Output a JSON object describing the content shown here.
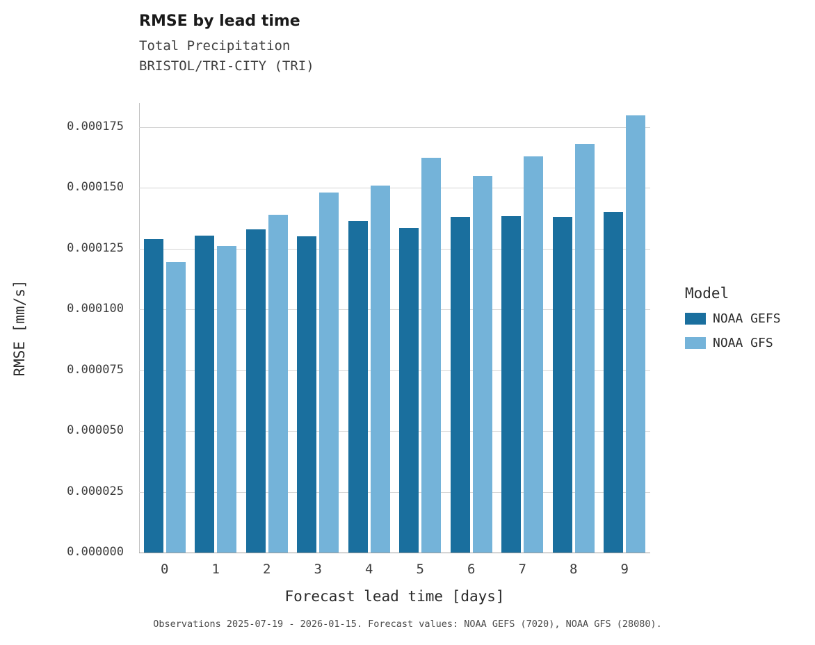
{
  "header": {
    "title": "RMSE by lead time",
    "subtitle": "Total Precipitation\nBRISTOL/TRI-CITY (TRI)"
  },
  "chart_data": {
    "type": "bar",
    "title": "RMSE by lead time",
    "subtitle": "Total Precipitation / BRISTOL/TRI-CITY (TRI)",
    "xlabel": "Forecast lead time [days]",
    "ylabel": "RMSE [mm/s]",
    "categories": [
      "0",
      "1",
      "2",
      "3",
      "4",
      "5",
      "6",
      "7",
      "8",
      "9"
    ],
    "series": [
      {
        "name": "NOAA GEFS",
        "color": "#1a6f9e",
        "values": [
          0.000129,
          0.0001305,
          0.000133,
          0.00013,
          0.0001365,
          0.0001335,
          0.000138,
          0.0001385,
          0.000138,
          0.00014
        ]
      },
      {
        "name": "NOAA GFS",
        "color": "#74b3d9",
        "values": [
          0.0001195,
          0.000126,
          0.000139,
          0.000148,
          0.000151,
          0.0001625,
          0.000155,
          0.000163,
          0.000168,
          0.00018
        ]
      }
    ],
    "ylim": [
      0,
      0.000185
    ],
    "yticks": [
      0,
      2.5e-05,
      5e-05,
      7.5e-05,
      0.0001,
      0.000125,
      0.00015,
      0.000175
    ],
    "ytick_labels": [
      "0.000000",
      "0.000025",
      "0.000050",
      "0.000075",
      "0.000100",
      "0.000125",
      "0.000150",
      "0.000175"
    ],
    "grid": true,
    "legend_title": "Model",
    "legend_position": "right"
  },
  "legend": {
    "title": "Model",
    "items": [
      {
        "label": "NOAA GEFS",
        "color": "#1a6f9e"
      },
      {
        "label": "NOAA GFS",
        "color": "#74b3d9"
      }
    ]
  },
  "caption": "Observations 2025-07-19 - 2026-01-15. Forecast values: NOAA GEFS (7020), NOAA GFS (28080)."
}
